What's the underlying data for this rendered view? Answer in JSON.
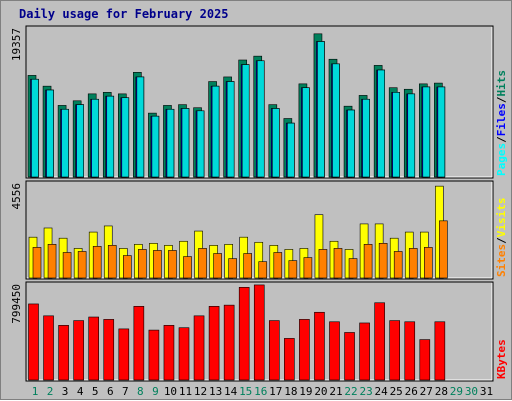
{
  "title": "Daily usage for February 2025",
  "colors": {
    "hits": "#00805c",
    "files": "#0000ff",
    "pages": "#00ffff",
    "visits": "#ffff00",
    "sites": "#ff8000",
    "kbytes": "#ff0000",
    "weekday_label": "#000000",
    "weekend_label": "#00805c",
    "background": "#c0c0c0"
  },
  "chart_data": [
    {
      "type": "bar",
      "title": "Daily usage for February 2025",
      "axis_max_label": "19357",
      "ymax": 19357,
      "legend": [
        "Pages",
        "Files",
        "Hits"
      ],
      "x": [
        1,
        2,
        3,
        4,
        5,
        6,
        7,
        8,
        9,
        10,
        11,
        12,
        13,
        14,
        15,
        16,
        17,
        18,
        19,
        20,
        21,
        22,
        23,
        24,
        25,
        26,
        27,
        28
      ],
      "series": [
        {
          "name": "Hits",
          "values": [
            13200,
            11800,
            9300,
            9900,
            10800,
            11000,
            10800,
            13600,
            8300,
            9300,
            9400,
            9000,
            12400,
            13000,
            15200,
            15700,
            9400,
            7600,
            12100,
            18600,
            15300,
            9200,
            10600,
            14500,
            11600,
            11400,
            12100,
            12200
          ]
        },
        {
          "name": "Files",
          "values": [
            12700,
            11300,
            8800,
            9400,
            10100,
            10500,
            10300,
            13000,
            7900,
            8800,
            8900,
            8600,
            11800,
            12400,
            14600,
            15100,
            8900,
            7000,
            11600,
            17600,
            14700,
            8700,
            10100,
            13900,
            11000,
            10800,
            11700,
            11700
          ]
        },
        {
          "name": "Pages",
          "values": [
            12700,
            11300,
            8800,
            9400,
            10100,
            10500,
            10300,
            13000,
            7900,
            8800,
            8900,
            8600,
            11800,
            12400,
            14600,
            15100,
            8900,
            7000,
            11600,
            17600,
            14700,
            8700,
            10100,
            13900,
            11000,
            10800,
            11700,
            11700
          ]
        }
      ]
    },
    {
      "type": "bar",
      "axis_max_label": "4556",
      "ymax": 4556,
      "legend": [
        "Sites",
        "Visits"
      ],
      "x": [
        1,
        2,
        3,
        4,
        5,
        6,
        7,
        8,
        9,
        10,
        11,
        12,
        13,
        14,
        15,
        16,
        17,
        18,
        19,
        20,
        21,
        22,
        23,
        24,
        25,
        26,
        27,
        28
      ],
      "series": [
        {
          "name": "Visits",
          "values": [
            2000,
            2450,
            1950,
            1450,
            2250,
            2550,
            1450,
            1650,
            1700,
            1600,
            1800,
            2300,
            1600,
            1650,
            2000,
            1750,
            1600,
            1400,
            1450,
            3100,
            1800,
            1400,
            2650,
            2650,
            1950,
            2250,
            2250,
            4500
          ]
        },
        {
          "name": "Sites",
          "values": [
            1500,
            1650,
            1250,
            1300,
            1550,
            1600,
            1100,
            1400,
            1350,
            1350,
            1050,
            1450,
            1200,
            950,
            1200,
            800,
            1250,
            850,
            1000,
            1400,
            1450,
            950,
            1650,
            1700,
            1300,
            1450,
            1500,
            2800
          ]
        }
      ]
    },
    {
      "type": "bar",
      "axis_max_label": "799450",
      "ymax": 799450,
      "legend": [
        "KBytes"
      ],
      "x": [
        1,
        2,
        3,
        4,
        5,
        6,
        7,
        8,
        9,
        10,
        11,
        12,
        13,
        14,
        15,
        16,
        17,
        18,
        19,
        20,
        21,
        22,
        23,
        24,
        25,
        26,
        27,
        28
      ],
      "series": [
        {
          "name": "KBytes",
          "values": [
            640000,
            540000,
            460000,
            500000,
            530000,
            510000,
            430000,
            620000,
            420000,
            460000,
            440000,
            540000,
            620000,
            630000,
            780000,
            800000,
            500000,
            350000,
            510000,
            570000,
            490000,
            400000,
            480000,
            650000,
            500000,
            490000,
            340000,
            490000
          ]
        }
      ]
    }
  ],
  "days": [
    {
      "label": "1",
      "weekend": true
    },
    {
      "label": "2",
      "weekend": true
    },
    {
      "label": "3",
      "weekend": false
    },
    {
      "label": "4",
      "weekend": false
    },
    {
      "label": "5",
      "weekend": false
    },
    {
      "label": "6",
      "weekend": false
    },
    {
      "label": "7",
      "weekend": false
    },
    {
      "label": "8",
      "weekend": true
    },
    {
      "label": "9",
      "weekend": true
    },
    {
      "label": "10",
      "weekend": false
    },
    {
      "label": "11",
      "weekend": false
    },
    {
      "label": "12",
      "weekend": false
    },
    {
      "label": "13",
      "weekend": false
    },
    {
      "label": "14",
      "weekend": false
    },
    {
      "label": "15",
      "weekend": true
    },
    {
      "label": "16",
      "weekend": true
    },
    {
      "label": "17",
      "weekend": false
    },
    {
      "label": "18",
      "weekend": false
    },
    {
      "label": "19",
      "weekend": false
    },
    {
      "label": "20",
      "weekend": false
    },
    {
      "label": "21",
      "weekend": false
    },
    {
      "label": "22",
      "weekend": true
    },
    {
      "label": "23",
      "weekend": true
    },
    {
      "label": "24",
      "weekend": false
    },
    {
      "label": "25",
      "weekend": false
    },
    {
      "label": "26",
      "weekend": false
    },
    {
      "label": "27",
      "weekend": false
    },
    {
      "label": "28",
      "weekend": false
    },
    {
      "label": "29",
      "weekend": true
    },
    {
      "label": "30",
      "weekend": true
    },
    {
      "label": "31",
      "weekend": false
    }
  ]
}
